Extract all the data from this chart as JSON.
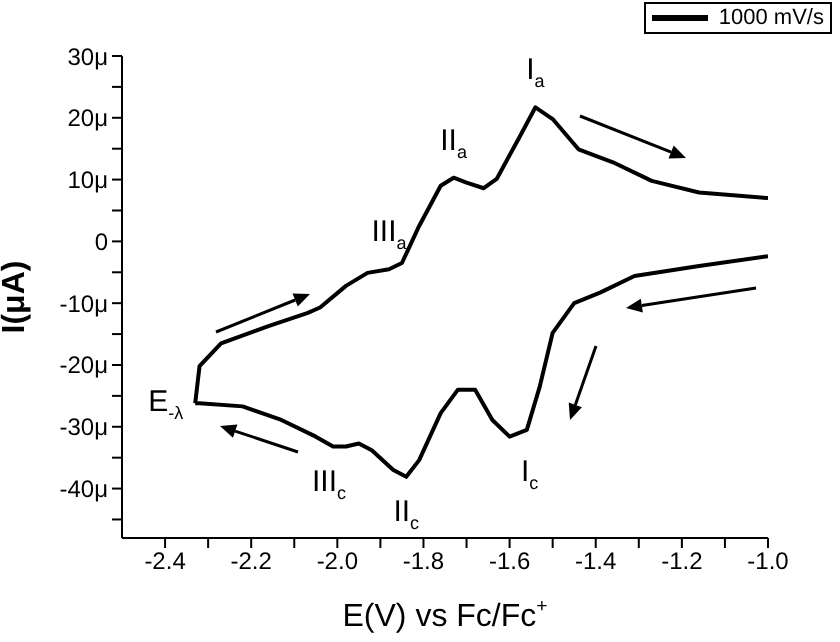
{
  "chart_data": {
    "type": "line",
    "xlabel": "E(V) vs Fc/Fc$^{+}$",
    "ylabel": "I(μA)",
    "series": [
      {
        "name": "1000 mV/s",
        "color": "#000000",
        "x": [
          -2.33,
          -2.32,
          -2.27,
          -2.16,
          -2.07,
          -2.04,
          -1.98,
          -1.93,
          -1.88,
          -1.85,
          -1.81,
          -1.76,
          -1.73,
          -1.7,
          -1.66,
          -1.63,
          -1.58,
          -1.54,
          -1.5,
          -1.44,
          -1.36,
          -1.27,
          -1.16,
          -1.0
        ],
        "values": [
          -26.2,
          -20.2,
          -16.5,
          -13.7,
          -11.6,
          -10.7,
          -7.2,
          -5.1,
          -4.5,
          -3.5,
          2.5,
          9.0,
          10.3,
          9.5,
          8.6,
          10.1,
          16.5,
          21.7,
          19.8,
          14.9,
          12.8,
          9.8,
          7.9,
          7.0
        ]
      },
      {
        "color": "#000000",
        "x": [
          -1.0,
          -1.16,
          -1.31,
          -1.39,
          -1.45,
          -1.5,
          -1.53,
          -1.56,
          -1.6,
          -1.64,
          -1.68,
          -1.72,
          -1.76,
          -1.81,
          -1.84,
          -1.87,
          -1.92,
          -1.95,
          -1.98,
          -2.01,
          -2.05,
          -2.13,
          -2.22,
          -2.32,
          -2.33
        ],
        "values": [
          -2.4,
          -4.0,
          -5.6,
          -8.3,
          -10.0,
          -14.8,
          -23.5,
          -30.5,
          -31.6,
          -28.9,
          -24.0,
          -24.0,
          -27.8,
          -35.4,
          -38.1,
          -37.0,
          -33.8,
          -32.7,
          -33.2,
          -33.2,
          -31.6,
          -28.9,
          -26.7,
          -26.2,
          -26.2
        ]
      }
    ],
    "xlim": [
      -2.5,
      -1.0
    ],
    "xticks": [
      -2.4,
      {
        "value": -2.3,
        "label": null
      },
      -2.2,
      {
        "value": -2.1,
        "label": null
      },
      {
        "value": -2,
        "label": "-2.0"
      },
      {
        "value": -1.9,
        "label": null
      },
      -1.8,
      {
        "value": -1.7,
        "label": null
      },
      -1.6,
      {
        "value": -1.5,
        "label": null
      },
      -1.4,
      {
        "value": -1.3,
        "label": null
      },
      -1.2,
      {
        "value": -1.1,
        "label": null
      },
      {
        "value": -1,
        "label": "-1.0"
      }
    ],
    "ylim": [
      -48,
      30
    ],
    "yticks": [
      {
        "value": -45,
        "label": null
      },
      {
        "value": -40,
        "label": "-40μ"
      },
      {
        "value": -35,
        "label": null
      },
      {
        "value": -30,
        "label": "-30μ"
      },
      {
        "value": -25,
        "label": null
      },
      {
        "value": -20,
        "label": "-20μ"
      },
      {
        "value": -15,
        "label": null
      },
      {
        "value": -10,
        "label": "-10μ"
      },
      {
        "value": -5,
        "label": null
      },
      0,
      {
        "value": 5,
        "label": null
      },
      {
        "value": 10,
        "label": "10μ"
      },
      {
        "value": 15,
        "label": null
      },
      {
        "value": 20,
        "label": "20μ"
      },
      {
        "value": 25,
        "label": null
      },
      {
        "value": 30,
        "label": "30μ"
      }
    ],
    "annotations": [
      {
        "text": "I$_{a}$",
        "x": -1.54,
        "y": 21.7
      },
      {
        "text": "II$_{a}$",
        "x": -1.73,
        "y": 10.3
      },
      {
        "text": "III$_{a}$",
        "x": -1.88,
        "y": -4.5
      },
      {
        "text": "I$_{c}$",
        "x": -1.6,
        "y": -31.6
      },
      {
        "text": "II$_{c}$",
        "x": -1.84,
        "y": -38.1
      },
      {
        "text": "III$_{c}$",
        "x": -2.01,
        "y": -33.2
      },
      {
        "text": "E$_{-λ}$",
        "x": -2.33,
        "y": -26.2
      }
    ],
    "grid": false,
    "legend": "top right",
    "marker": "none",
    "line_style": "solid"
  }
}
